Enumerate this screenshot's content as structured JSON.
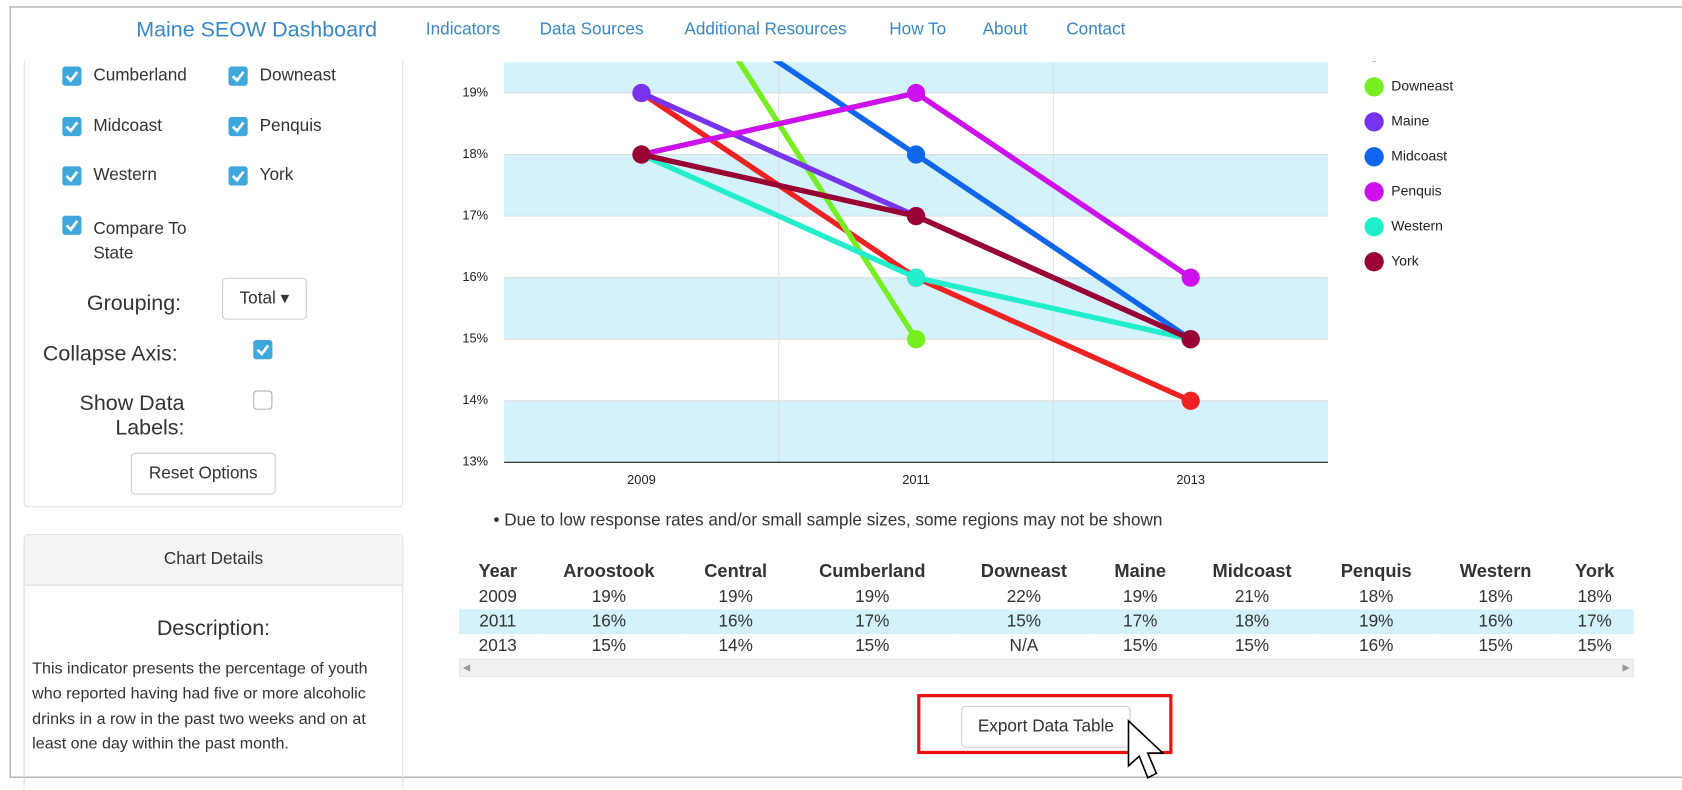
{
  "nav": {
    "brand": "Maine SEOW Dashboard",
    "links": [
      "Indicators",
      "Data Sources",
      "Additional Resources",
      "How To",
      "About",
      "Contact"
    ]
  },
  "sidebar": {
    "regions": [
      "Cumberland",
      "Downeast",
      "Midcoast",
      "Penquis",
      "Western",
      "York"
    ],
    "compare": "Compare To State",
    "grouping_label": "Grouping:",
    "grouping_value": "Total",
    "collapse_label": "Collapse Axis:",
    "data_labels_label": "Show Data Labels:",
    "reset": "Reset Options"
  },
  "details": {
    "header": "Chart Details",
    "heading": "Description:",
    "text": "This indicator presents the percentage of youth who reported having had five or more alcoholic drinks in a row in the past two weeks and on at least one day within the past month."
  },
  "chart_data": {
    "type": "line",
    "categories": [
      "2009",
      "2011",
      "2013"
    ],
    "series": [
      {
        "name": "Central",
        "color": "#ee2222",
        "values": [
          19,
          16,
          14
        ]
      },
      {
        "name": "Downeast",
        "color": "#77ee22",
        "values": [
          22,
          15,
          null
        ]
      },
      {
        "name": "Maine",
        "color": "#7733ee",
        "values": [
          19,
          17,
          15
        ]
      },
      {
        "name": "Midcoast",
        "color": "#1166ee",
        "values": [
          21,
          18,
          15
        ]
      },
      {
        "name": "Penquis",
        "color": "#cc11ee",
        "values": [
          18,
          19,
          16
        ]
      },
      {
        "name": "Western",
        "color": "#22eecc",
        "values": [
          18,
          16,
          15
        ]
      },
      {
        "name": "York",
        "color": "#990033",
        "values": [
          18,
          17,
          15
        ]
      }
    ],
    "ylim": [
      13,
      19.5
    ],
    "yticks": [
      {
        "value": 13,
        "label": "13%"
      },
      {
        "value": 14,
        "label": "14%"
      },
      {
        "value": 15,
        "label": "15%"
      },
      {
        "value": 16,
        "label": "16%"
      },
      {
        "value": 17,
        "label": "17%"
      },
      {
        "value": 18,
        "label": "18%"
      },
      {
        "value": 19,
        "label": "19%"
      }
    ],
    "grid": true,
    "legend": "right"
  },
  "note": "Due to low response rates and/or small sample sizes, some regions may not be shown",
  "table": {
    "columns": [
      "Year",
      "Aroostook",
      "Central",
      "Cumberland",
      "Downeast",
      "Maine",
      "Midcoast",
      "Penquis",
      "Western",
      "York"
    ],
    "rows": [
      [
        "2009",
        "19%",
        "19%",
        "19%",
        "22%",
        "19%",
        "21%",
        "18%",
        "18%",
        "18%"
      ],
      [
        "2011",
        "16%",
        "16%",
        "17%",
        "15%",
        "17%",
        "18%",
        "19%",
        "16%",
        "17%"
      ],
      [
        "2013",
        "15%",
        "14%",
        "15%",
        "N/A",
        "15%",
        "15%",
        "16%",
        "15%",
        "15%"
      ]
    ]
  },
  "export_button": "Export Data Table"
}
